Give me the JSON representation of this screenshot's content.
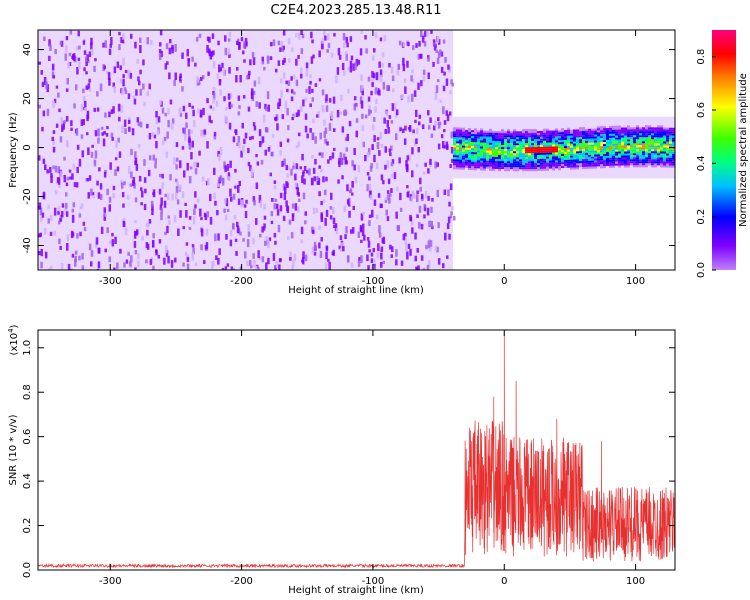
{
  "title": "C2E4.2023.285.13.48.R11",
  "chart_data": [
    {
      "type": "heatmap",
      "xlabel": "Height of straight line (km)",
      "ylabel": "Frequency (Hz)",
      "xlim": [
        -355,
        130
      ],
      "ylim": [
        -50,
        48
      ],
      "x_ticks": [
        -300,
        -200,
        -100,
        0,
        100
      ],
      "y_ticks": [
        -40,
        -20,
        0,
        20,
        40
      ],
      "noise_region": {
        "x": [
          -355,
          -39
        ],
        "y": [
          -50,
          48
        ],
        "amplitude": 0.12
      },
      "signal_band": {
        "x": [
          -39,
          130
        ],
        "center_frequency": 0,
        "half_width": 7,
        "peak_amplitude": 0.9,
        "peak_x": [
          15,
          40
        ]
      },
      "colorbar": {
        "label": "Normalized spectral amplitude",
        "range": [
          0,
          0.9
        ],
        "ticks": [
          0.0,
          0.2,
          0.4,
          0.6,
          0.8
        ],
        "colors": [
          "#c080ff",
          "#8000ff",
          "#0000ff",
          "#00c0ff",
          "#00ff80",
          "#40ff00",
          "#ffff00",
          "#ff8000",
          "#ff0000",
          "#ff0080"
        ]
      }
    },
    {
      "type": "line",
      "xlabel": "Height of straight line (km)",
      "ylabel": "SNR (10 * v/v)",
      "y_multiplier": "(x10",
      "y_multiplier_exp": "4",
      "xlim": [
        -355,
        130
      ],
      "ylim": [
        0,
        1.08
      ],
      "x_ticks": [
        -300,
        -200,
        -100,
        0,
        100
      ],
      "y_ticks": [
        "0.0",
        "0.2",
        "0.4",
        "0.6",
        "0.8",
        "1.0"
      ],
      "color": "#e83030",
      "segments": [
        {
          "x": [
            -355,
            -30
          ],
          "level": 0.02
        },
        {
          "x": [
            -30,
            -27
          ],
          "level": 0.4
        },
        {
          "x": [
            -27,
            0
          ],
          "level": 0.45
        },
        {
          "x": [
            0,
            60
          ],
          "level": 0.4
        },
        {
          "x": [
            60,
            130
          ],
          "level": 0.25
        }
      ],
      "peaks": [
        {
          "x": -8,
          "y": 0.78
        },
        {
          "x": 0,
          "y": 1.07
        },
        {
          "x": 9,
          "y": 0.85
        },
        {
          "x": 40,
          "y": 0.68
        },
        {
          "x": 74,
          "y": 0.58
        }
      ]
    }
  ]
}
